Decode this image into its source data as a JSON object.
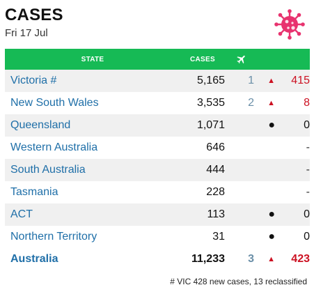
{
  "header": {
    "title": "CASES",
    "date": "Fri 17 Jul",
    "icon": "virus-icon",
    "icon_color": "#e8336f"
  },
  "table": {
    "columns": {
      "state": "STATE",
      "cases": "CASES",
      "overseas_icon": "plane-icon"
    },
    "header_color": "#16ba55",
    "rows": [
      {
        "state": "Victoria #",
        "cases": "5,165",
        "overseas": "1",
        "indicator": "▲",
        "new": "415"
      },
      {
        "state": "New South Wales",
        "cases": "3,535",
        "overseas": "2",
        "indicator": "▲",
        "new": "8"
      },
      {
        "state": "Queensland",
        "cases": "1,071",
        "overseas": "",
        "indicator": "●",
        "new": "0"
      },
      {
        "state": "Western Australia",
        "cases": "646",
        "overseas": "",
        "indicator": "",
        "new": "-"
      },
      {
        "state": "South Australia",
        "cases": "444",
        "overseas": "",
        "indicator": "",
        "new": "-"
      },
      {
        "state": "Tasmania",
        "cases": "228",
        "overseas": "",
        "indicator": "",
        "new": "-"
      },
      {
        "state": "ACT",
        "cases": "113",
        "overseas": "",
        "indicator": "●",
        "new": "0"
      },
      {
        "state": "Northern Territory",
        "cases": "31",
        "overseas": "",
        "indicator": "●",
        "new": "0"
      }
    ],
    "total": {
      "state": "Australia",
      "cases": "11,233",
      "overseas": "3",
      "indicator": "▲",
      "new": "423"
    }
  },
  "footnote": "# VIC 428 new cases, 13 reclassified"
}
